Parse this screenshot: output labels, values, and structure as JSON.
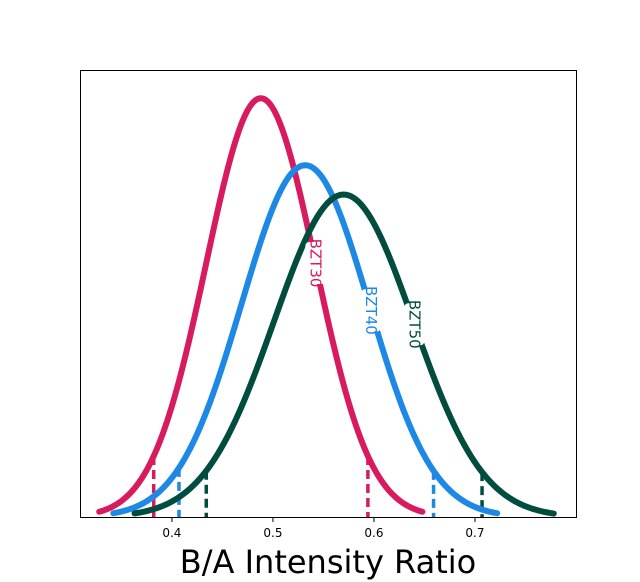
{
  "chart_data": {
    "type": "line",
    "xlabel": "B/A Intensity Ratio",
    "ylabel": "",
    "xlim": [
      0.31,
      0.8
    ],
    "ylim": [
      0.0,
      1.065
    ],
    "x_ticks": [
      0.4,
      0.5,
      0.6,
      0.7
    ],
    "x_tick_labels": [
      "0.4",
      "0.5",
      "0.6",
      "0.7"
    ],
    "y_ticks_shown": false,
    "grid": false,
    "legend": "none (inline labels on curves)",
    "series": [
      {
        "name": "BZT30",
        "color": "#d81b60",
        "distribution": {
          "mean": 0.488,
          "sd": 0.054,
          "peak": 1.0
        },
        "x_range": [
          0.328,
          0.648
        ],
        "lower_marker": 0.382,
        "upper_marker": 0.594,
        "label_x": 0.542
      },
      {
        "name": "BZT40",
        "color": "#1e88e5",
        "distribution": {
          "mean": 0.532,
          "sd": 0.063,
          "peak": 0.84
        },
        "x_range": [
          0.342,
          0.722
        ],
        "lower_marker": 0.407,
        "upper_marker": 0.659,
        "label_x": 0.597
      },
      {
        "name": "BZT50",
        "color": "#004d40",
        "distribution": {
          "mean": 0.57,
          "sd": 0.069,
          "peak": 0.77
        },
        "x_range": [
          0.363,
          0.778
        ],
        "lower_marker": 0.434,
        "upper_marker": 0.707,
        "label_x": 0.64
      }
    ]
  }
}
